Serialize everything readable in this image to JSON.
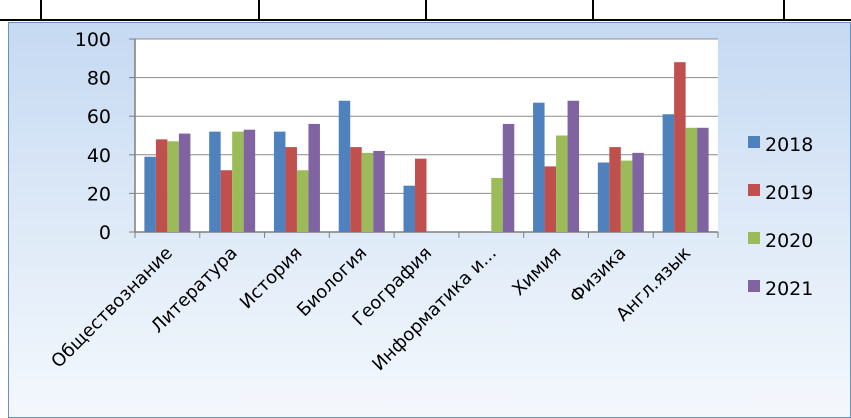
{
  "chart_data": {
    "type": "bar",
    "title": "",
    "xlabel": "",
    "ylabel": "",
    "ylim": [
      0,
      100
    ],
    "yticks": [
      0,
      20,
      40,
      60,
      80,
      100
    ],
    "grid": true,
    "legend_position": "right",
    "categories": [
      "Обществознание",
      "Литература",
      "История",
      "Биология",
      "География",
      "Информатика и...",
      "Химия",
      "Физика",
      "Англ.язык"
    ],
    "series": [
      {
        "name": "2018",
        "color": "#4f81bd",
        "values": [
          39,
          52,
          52,
          68,
          24,
          null,
          67,
          36,
          61
        ]
      },
      {
        "name": "2019",
        "color": "#c0504d",
        "values": [
          48,
          32,
          44,
          44,
          38,
          null,
          34,
          44,
          88
        ]
      },
      {
        "name": "2020",
        "color": "#9bbb59",
        "values": [
          47,
          52,
          32,
          41,
          null,
          28,
          50,
          37,
          54
        ]
      },
      {
        "name": "2021",
        "color": "#8064a2",
        "values": [
          51,
          53,
          56,
          42,
          null,
          56,
          68,
          41,
          54
        ]
      }
    ]
  }
}
